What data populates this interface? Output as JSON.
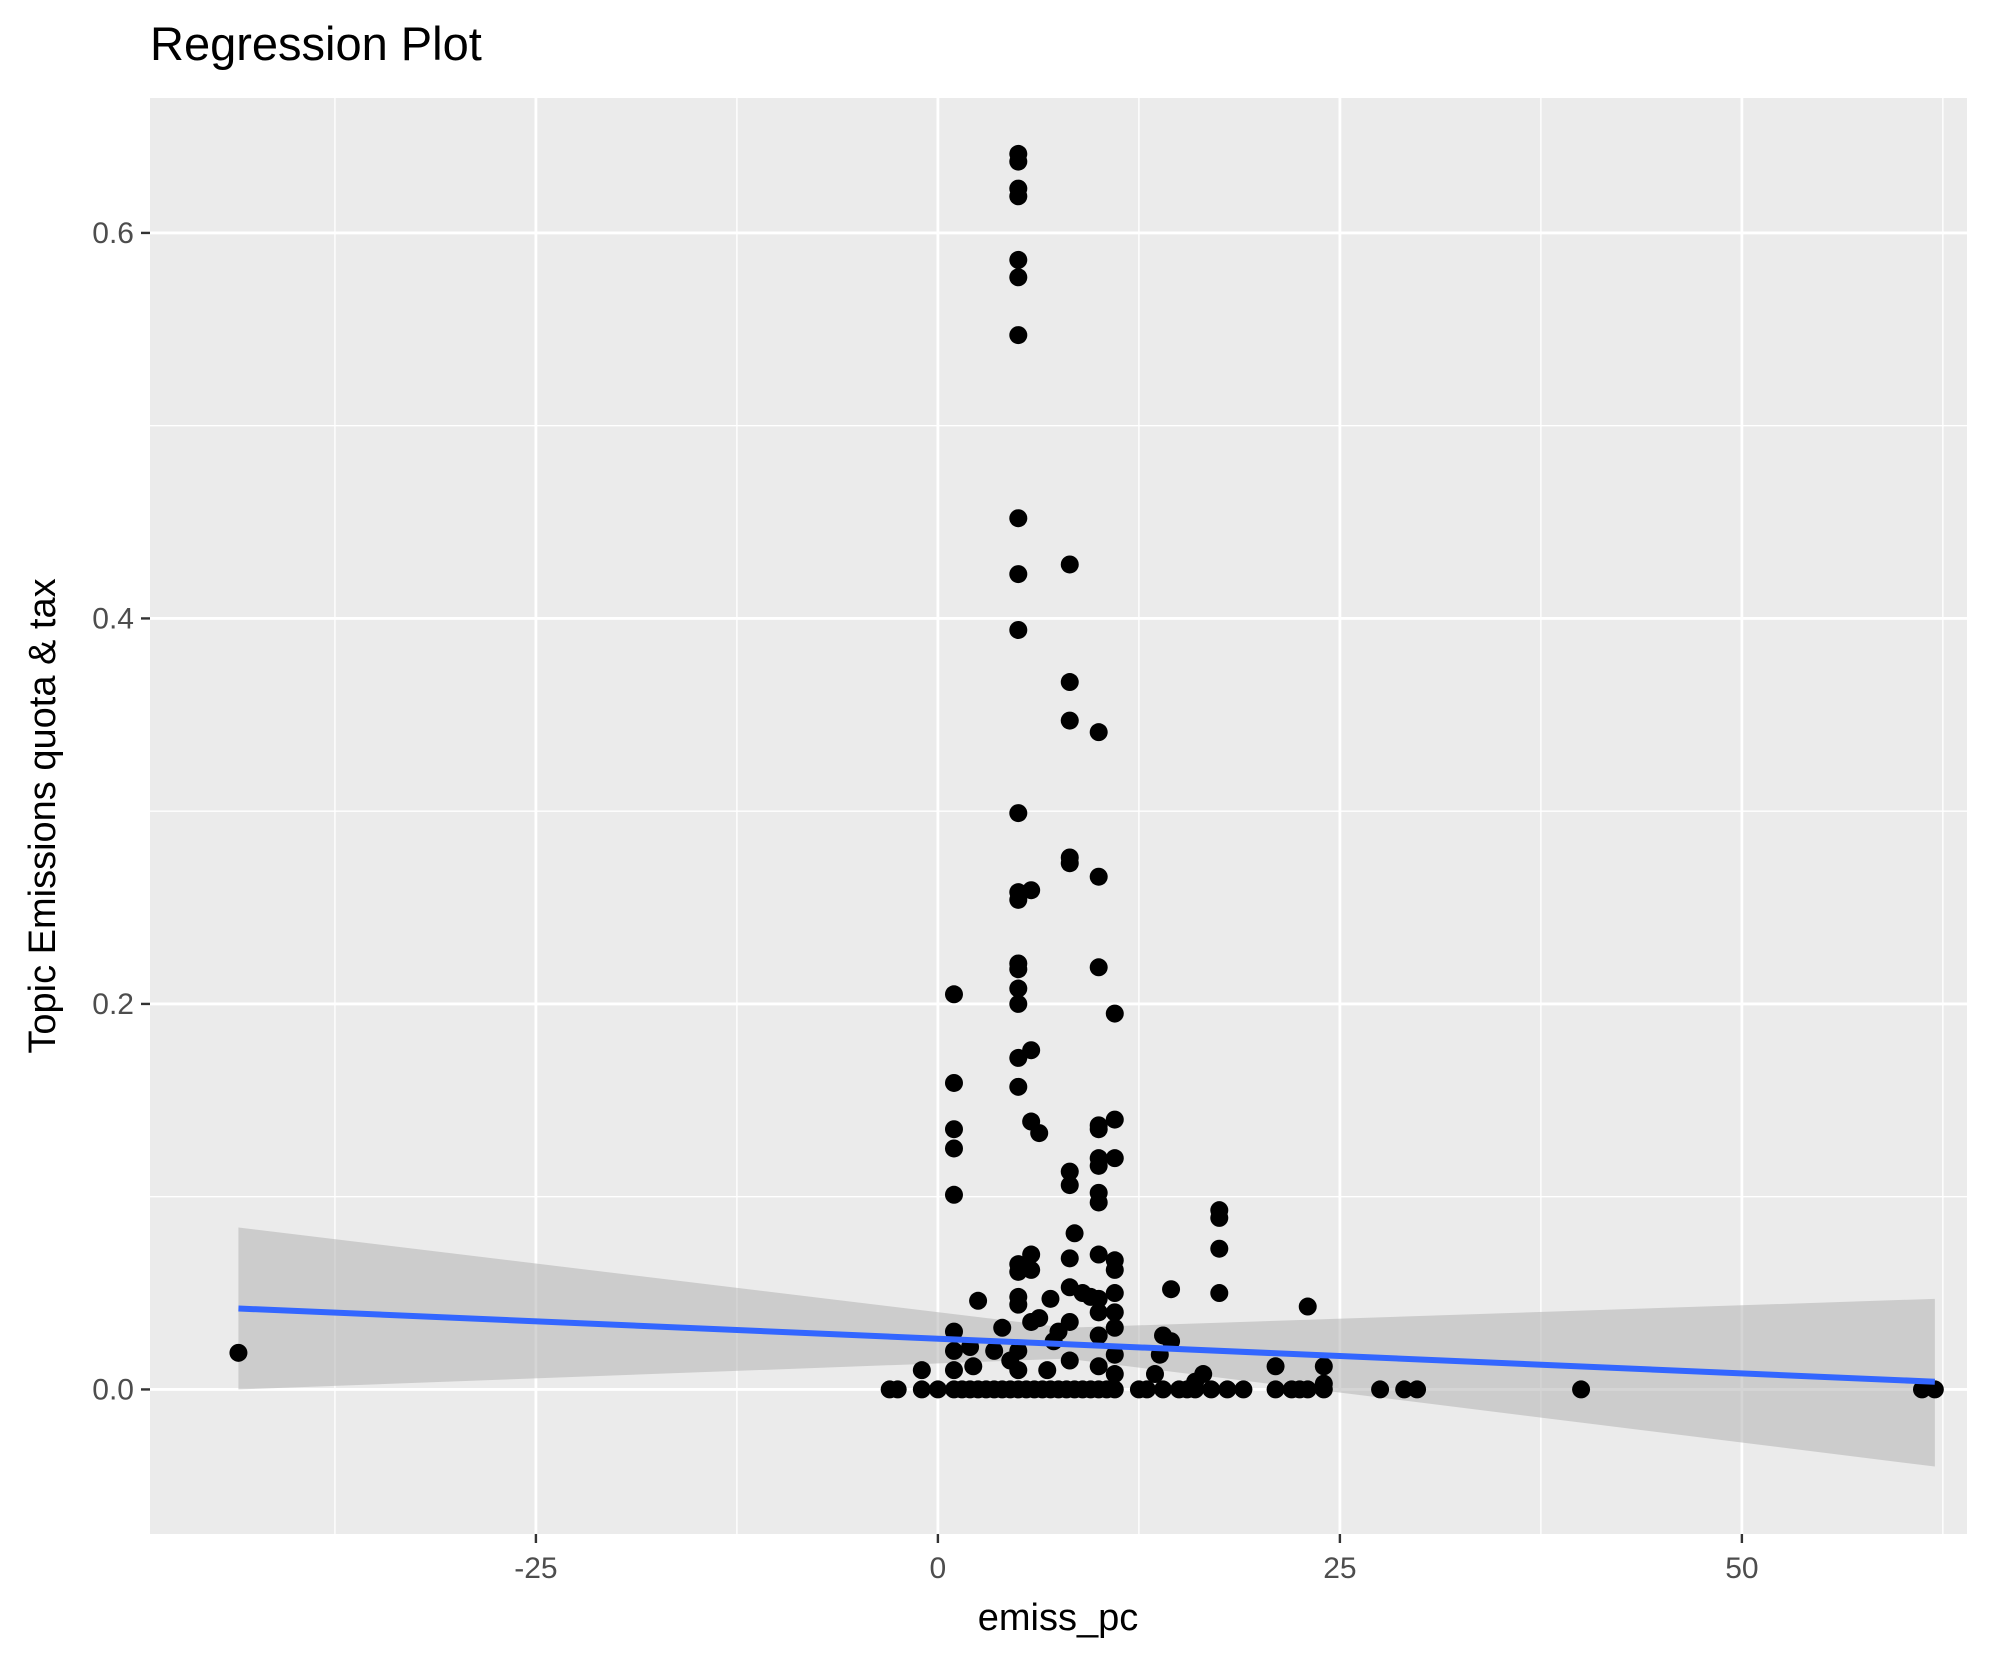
{
  "chart_data": {
    "type": "scatter",
    "title": "Regression Plot",
    "xlabel": "emiss_pc",
    "ylabel": "Topic Emissions quota & tax",
    "xlim": [
      -49,
      64
    ],
    "ylim": [
      -0.075,
      0.67
    ],
    "x_ticks": [
      -25,
      0,
      25,
      50
    ],
    "x_tick_labels": [
      "-25",
      "0",
      "25",
      "50"
    ],
    "y_ticks": [
      0.0,
      0.2,
      0.4,
      0.6
    ],
    "y_tick_labels": [
      "0.0",
      "0.2",
      "0.4",
      "0.6"
    ],
    "grid": true,
    "legend": "none",
    "colors": {
      "panel": "#ebebeb",
      "grid": "#ffffff",
      "points": "#000000",
      "fit_line": "#3366ff",
      "ribbon": "#b3b3b3"
    },
    "points": [
      [
        -43.5,
        0.019
      ],
      [
        5,
        0.641
      ],
      [
        5,
        0.637
      ],
      [
        5,
        0.623
      ],
      [
        5,
        0.619
      ],
      [
        5,
        0.586
      ],
      [
        5,
        0.577
      ],
      [
        5,
        0.547
      ],
      [
        5,
        0.452
      ],
      [
        5,
        0.423
      ],
      [
        5,
        0.394
      ],
      [
        5,
        0.299
      ],
      [
        5,
        0.258
      ],
      [
        5,
        0.254
      ],
      [
        5,
        0.221
      ],
      [
        5,
        0.218
      ],
      [
        5,
        0.208
      ],
      [
        5,
        0.2
      ],
      [
        5,
        0.172
      ],
      [
        5,
        0.157
      ],
      [
        5,
        0.065
      ],
      [
        5,
        0.061
      ],
      [
        5,
        0.048
      ],
      [
        5,
        0.044
      ],
      [
        5,
        0.02
      ],
      [
        5,
        0.01
      ],
      [
        8.2,
        0.428
      ],
      [
        8.2,
        0.367
      ],
      [
        8.2,
        0.347
      ],
      [
        8.2,
        0.276
      ],
      [
        8.2,
        0.273
      ],
      [
        8.2,
        0.113
      ],
      [
        8.2,
        0.106
      ],
      [
        8.2,
        0.068
      ],
      [
        8.2,
        0.053
      ],
      [
        8.2,
        0.035
      ],
      [
        8.2,
        0.015
      ],
      [
        10,
        0.341
      ],
      [
        10,
        0.266
      ],
      [
        10,
        0.219
      ],
      [
        10,
        0.137
      ],
      [
        10,
        0.135
      ],
      [
        10,
        0.12
      ],
      [
        10,
        0.116
      ],
      [
        10,
        0.102
      ],
      [
        10,
        0.097
      ],
      [
        10,
        0.07
      ],
      [
        10,
        0.047
      ],
      [
        10,
        0.04
      ],
      [
        10,
        0.028
      ],
      [
        10,
        0.012
      ],
      [
        11,
        0.195
      ],
      [
        11,
        0.14
      ],
      [
        11,
        0.12
      ],
      [
        11,
        0.067
      ],
      [
        11,
        0.062
      ],
      [
        11,
        0.05
      ],
      [
        11,
        0.04
      ],
      [
        11,
        0.032
      ],
      [
        11,
        0.018
      ],
      [
        11,
        0.008
      ],
      [
        5.8,
        0.259
      ],
      [
        5.8,
        0.176
      ],
      [
        5.8,
        0.139
      ],
      [
        5.8,
        0.07
      ],
      [
        5.8,
        0.062
      ],
      [
        5.8,
        0.035
      ],
      [
        6.3,
        0.133
      ],
      [
        6.3,
        0.037
      ],
      [
        8.5,
        0.081
      ],
      [
        9,
        0.05
      ],
      [
        9.5,
        0.048
      ],
      [
        7,
        0.047
      ],
      [
        7.5,
        0.03
      ],
      [
        7.2,
        0.025
      ],
      [
        1,
        0.205
      ],
      [
        1,
        0.159
      ],
      [
        1,
        0.135
      ],
      [
        1,
        0.125
      ],
      [
        1,
        0.101
      ],
      [
        1,
        0.03
      ],
      [
        1,
        0.02
      ],
      [
        1,
        0.01
      ],
      [
        2.5,
        0.046
      ],
      [
        2,
        0.022
      ],
      [
        2.2,
        0.012
      ],
      [
        3.5,
        0.02
      ],
      [
        4,
        0.032
      ],
      [
        4.5,
        0.015
      ],
      [
        6.8,
        0.01
      ],
      [
        17.5,
        0.093
      ],
      [
        17.5,
        0.089
      ],
      [
        17.5,
        0.073
      ],
      [
        17.5,
        0.05
      ],
      [
        14.5,
        0.052
      ],
      [
        14,
        0.028
      ],
      [
        14.5,
        0.025
      ],
      [
        13.8,
        0.018
      ],
      [
        13.5,
        0.008
      ],
      [
        23,
        0.043
      ],
      [
        21,
        0.012
      ],
      [
        24,
        0.012
      ],
      [
        24,
        0.003
      ],
      [
        16.5,
        0.008
      ],
      [
        16,
        0.004
      ],
      [
        -3,
        0
      ],
      [
        -2.5,
        0
      ],
      [
        -1,
        0.01
      ],
      [
        -1,
        0
      ],
      [
        0,
        0
      ],
      [
        1,
        0
      ],
      [
        1.5,
        0
      ],
      [
        2,
        0
      ],
      [
        2.5,
        0
      ],
      [
        3,
        0
      ],
      [
        3.5,
        0
      ],
      [
        4,
        0
      ],
      [
        4.5,
        0
      ],
      [
        5,
        0
      ],
      [
        5.5,
        0
      ],
      [
        6,
        0
      ],
      [
        6.5,
        0
      ],
      [
        7,
        0
      ],
      [
        7.5,
        0
      ],
      [
        8,
        0
      ],
      [
        8.5,
        0
      ],
      [
        9,
        0
      ],
      [
        9.5,
        0
      ],
      [
        10,
        0
      ],
      [
        10.5,
        0
      ],
      [
        11,
        0
      ],
      [
        12.5,
        0
      ],
      [
        13,
        0
      ],
      [
        14,
        0
      ],
      [
        15,
        0
      ],
      [
        15.5,
        0
      ],
      [
        16,
        0
      ],
      [
        17,
        0
      ],
      [
        18,
        0
      ],
      [
        19,
        0
      ],
      [
        21,
        0
      ],
      [
        22,
        0
      ],
      [
        22.5,
        0
      ],
      [
        23,
        0
      ],
      [
        24,
        0
      ],
      [
        27.5,
        0
      ],
      [
        29,
        0
      ],
      [
        29.8,
        0
      ],
      [
        40,
        0
      ],
      [
        61.2,
        0
      ],
      [
        62,
        0
      ]
    ],
    "fit_line": {
      "x": [
        -43.5,
        62
      ],
      "y": [
        0.042,
        0.004
      ]
    },
    "confidence_band": {
      "x": [
        -43.5,
        8,
        62
      ],
      "lower": [
        0.0,
        0.016,
        -0.04
      ],
      "upper": [
        0.084,
        0.032,
        0.047
      ]
    }
  }
}
